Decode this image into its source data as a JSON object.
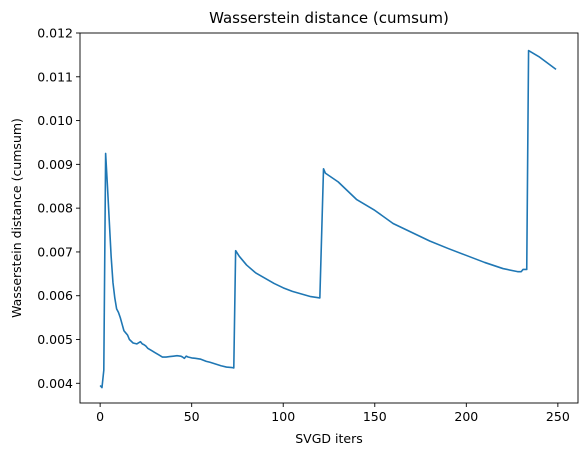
{
  "chart_data": {
    "type": "line",
    "title": "Wasserstein distance (cumsum)",
    "xlabel": "SVGD iters",
    "ylabel": "Wasserstein distance (cumsum)",
    "xlim": [
      -11,
      261
    ],
    "ylim": [
      0.00355,
      0.012
    ],
    "xticks": [
      0,
      50,
      100,
      150,
      200,
      250
    ],
    "xtick_labels": [
      "0",
      "50",
      "100",
      "150",
      "200",
      "250"
    ],
    "yticks": [
      0.004,
      0.005,
      0.006,
      0.007,
      0.008,
      0.009,
      0.01,
      0.011,
      0.012
    ],
    "ytick_labels": [
      "0.004",
      "0.005",
      "0.006",
      "0.007",
      "0.008",
      "0.009",
      "0.010",
      "0.011",
      "0.012"
    ],
    "grid": false,
    "series_color": "#1f77b4",
    "series": [
      {
        "x": [
          0,
          1,
          2,
          3,
          4,
          5,
          6,
          7,
          8,
          9,
          10,
          11,
          12,
          13,
          14,
          15,
          16,
          18,
          20,
          22,
          23,
          24,
          25,
          26,
          28,
          30,
          32,
          34,
          36,
          38,
          40,
          42,
          44,
          45,
          46,
          47,
          48,
          50,
          52,
          55,
          58,
          60,
          63,
          66,
          69,
          72,
          73,
          74,
          76,
          80,
          85,
          90,
          95,
          100,
          105,
          110,
          115,
          120,
          122,
          123,
          130,
          140,
          150,
          160,
          170,
          180,
          190,
          200,
          210,
          220,
          228,
          230,
          231,
          232,
          233,
          234,
          240,
          249
        ],
        "y": [
          0.00395,
          0.0039,
          0.0043,
          0.00925,
          0.0085,
          0.0077,
          0.0069,
          0.0063,
          0.00595,
          0.0057,
          0.00562,
          0.0055,
          0.00535,
          0.0052,
          0.00515,
          0.0051,
          0.005,
          0.00492,
          0.0049,
          0.00495,
          0.0049,
          0.00488,
          0.00485,
          0.0048,
          0.00475,
          0.0047,
          0.00465,
          0.0046,
          0.0046,
          0.00461,
          0.00462,
          0.00463,
          0.00462,
          0.0046,
          0.00457,
          0.00462,
          0.0046,
          0.00458,
          0.00457,
          0.00455,
          0.0045,
          0.00448,
          0.00444,
          0.0044,
          0.00437,
          0.00436,
          0.00435,
          0.00703,
          0.0069,
          0.0067,
          0.00652,
          0.0064,
          0.00628,
          0.00618,
          0.0061,
          0.00604,
          0.00598,
          0.00595,
          0.0089,
          0.0088,
          0.0086,
          0.0082,
          0.00795,
          0.00765,
          0.00745,
          0.00725,
          0.00708,
          0.00692,
          0.00676,
          0.00662,
          0.00655,
          0.00655,
          0.0066,
          0.0066,
          0.0066,
          0.0116,
          0.01145,
          0.01117
        ]
      }
    ]
  }
}
